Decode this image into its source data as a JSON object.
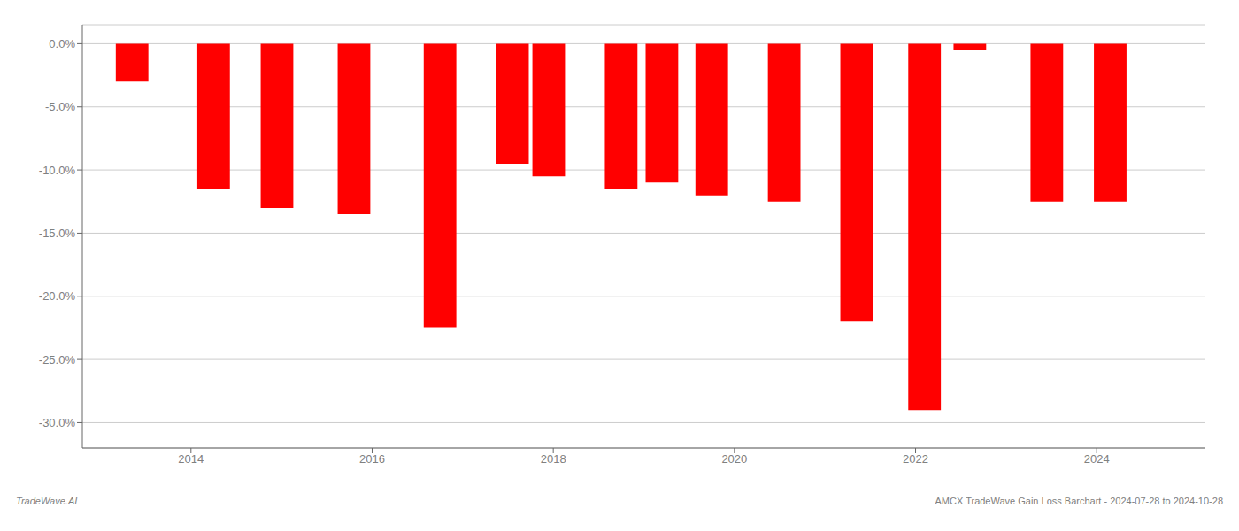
{
  "chart_data": {
    "type": "bar",
    "x": [
      2013.35,
      2014.25,
      2014.95,
      2015.8,
      2016.75,
      2017.55,
      2017.95,
      2018.75,
      2019.2,
      2019.75,
      2020.55,
      2021.35,
      2022.1,
      2022.6,
      2023.45,
      2024.15
    ],
    "values": [
      -3.0,
      -11.5,
      -13.0,
      -13.5,
      -22.5,
      -9.5,
      -10.5,
      -11.5,
      -11.0,
      -12.0,
      -12.5,
      -22.0,
      -29.0,
      -0.5,
      -12.5,
      -12.5
    ],
    "color": "#ff0000",
    "xlim": [
      2012.8,
      2025.2
    ],
    "xticks": [
      2014,
      2016,
      2018,
      2020,
      2022,
      2024
    ],
    "ylim": [
      -32,
      1.5
    ],
    "yticks": [
      {
        "value": 0,
        "label": "0.0%"
      },
      {
        "value": -5,
        "label": "-5.0%"
      },
      {
        "value": -10,
        "label": "-10.0%"
      },
      {
        "value": -15,
        "label": "-15.0%"
      },
      {
        "value": -20,
        "label": "-20.0%"
      },
      {
        "value": -25,
        "label": "-25.0%"
      },
      {
        "value": -30,
        "label": "-30.0%"
      }
    ],
    "grid": true,
    "annotations": [
      "TradeWave.AI",
      "AMCX TradeWave Gain Loss Barchart - 2024-07-28 to 2024-10-28"
    ]
  }
}
